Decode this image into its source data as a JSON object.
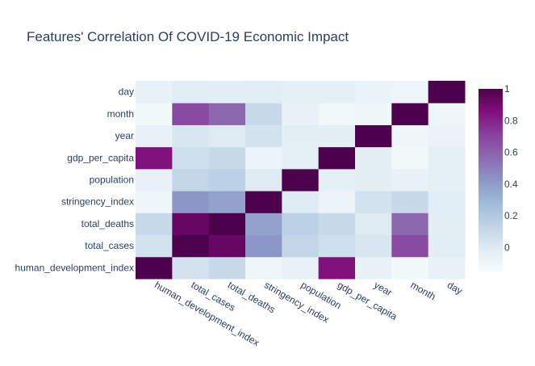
{
  "chart_data": {
    "type": "heatmap",
    "title": "Features' Correlation Of COVID-19 Economic Impact",
    "x_labels": [
      "human_development_index",
      "total_cases",
      "total_deaths",
      "stringency_index",
      "population",
      "gdp_per_capita",
      "year",
      "month",
      "day"
    ],
    "y_labels": [
      "human_development_index",
      "total_cases",
      "total_deaths",
      "stringency_index",
      "population",
      "gdp_per_capita",
      "year",
      "month",
      "day"
    ],
    "z": [
      [
        1,
        0.05,
        0.1,
        -0.1,
        -0.05,
        0.85,
        -0.05,
        -0.12,
        -0.05
      ],
      [
        0.05,
        1,
        0.93,
        0.42,
        0.12,
        0.07,
        0.03,
        0.68,
        -0.02
      ],
      [
        0.1,
        0.93,
        1,
        0.38,
        0.15,
        0.1,
        0.0,
        0.58,
        -0.03
      ],
      [
        -0.1,
        0.42,
        0.38,
        1,
        0.0,
        -0.08,
        0.05,
        0.1,
        -0.02
      ],
      [
        -0.05,
        0.12,
        0.15,
        0.0,
        1,
        -0.04,
        -0.03,
        -0.06,
        -0.04
      ],
      [
        0.85,
        0.07,
        0.1,
        -0.08,
        -0.04,
        1,
        -0.03,
        -0.11,
        -0.04
      ],
      [
        -0.05,
        0.03,
        0.0,
        0.05,
        -0.03,
        -0.03,
        1,
        -0.1,
        -0.07
      ],
      [
        -0.12,
        0.68,
        0.58,
        0.1,
        -0.06,
        -0.11,
        -0.1,
        1,
        -0.09
      ],
      [
        -0.05,
        -0.02,
        -0.03,
        -0.02,
        -0.04,
        -0.04,
        -0.07,
        -0.09,
        1
      ]
    ],
    "zmin": -0.15,
    "zmax": 1,
    "colorbar_ticks": [
      0,
      0.2,
      0.4,
      0.6,
      0.8,
      1
    ],
    "colorbar_tick_labels": [
      "0",
      "0.2",
      "0.4",
      "0.6",
      "0.8",
      "1"
    ],
    "colorscale": [
      "#f7fcfd",
      "#e0ecf4",
      "#bfd3e6",
      "#9ebcda",
      "#8c96c6",
      "#8c6bb1",
      "#88419d",
      "#810f7c",
      "#4d004b"
    ]
  }
}
